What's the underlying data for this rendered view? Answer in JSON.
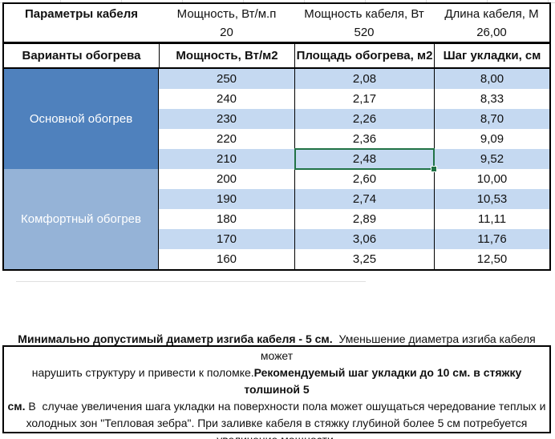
{
  "table": {
    "params_header": {
      "title": "Параметры кабеля",
      "power_per_m_label": "Мощность, Вт/м.п",
      "power_per_m_value": "20",
      "cable_power_label": "Мощность кабеля, Вт",
      "cable_power_value": "520",
      "cable_length_label": "Длина кабеля, М",
      "cable_length_value": "26,00"
    },
    "columns": [
      "Варианты обогрева",
      "Мощность, Вт/м2",
      "Площадь обогрева, м2",
      "Шаг укладки, см"
    ],
    "sections": [
      {
        "label": "Основной обогрев",
        "rows": [
          [
            "250",
            "2,08",
            "8,00"
          ],
          [
            "240",
            "2,17",
            "8,33"
          ],
          [
            "230",
            "2,26",
            "8,70"
          ],
          [
            "220",
            "2,36",
            "9,09"
          ],
          [
            "210",
            "2,48",
            "9,52"
          ]
        ]
      },
      {
        "label": "Комфортный обогрев",
        "rows": [
          [
            "200",
            "2,60",
            "10,00"
          ],
          [
            "190",
            "2,74",
            "10,53"
          ],
          [
            "180",
            "2,89",
            "11,11"
          ],
          [
            "170",
            "3,06",
            "11,76"
          ],
          [
            "160",
            "3,25",
            "12,50"
          ]
        ]
      }
    ],
    "selected_cell": {
      "section": 0,
      "row": 4,
      "col": 1,
      "value": "2,48"
    }
  },
  "note": {
    "lines": [
      [
        {
          "bold": true,
          "text": "Минимально допустимый диаметр изгиба кабеля - 5 см."
        },
        {
          "bold": false,
          "text": "  Уменьшение диаметра изгиба кабеля может"
        }
      ],
      [
        {
          "bold": false,
          "text": "нарушить структуру и привести к поломке."
        },
        {
          "bold": true,
          "text": "Рекомендуемый шаг укладки до 10 см. в стяжку толшиной 5"
        }
      ],
      [
        {
          "bold": true,
          "text": "см."
        },
        {
          "bold": false,
          "text": " В  случае увеличения шага укладки на поверхности пола может ошущаться чередование теплых и"
        }
      ],
      [
        {
          "bold": false,
          "text": "холодных зон \"Тепловая зебра\". При заливке кабеля в стяжку глубиной более 5 см потребуется"
        }
      ],
      [
        {
          "bold": false,
          "text": "увеличение мощности."
        }
      ]
    ]
  },
  "colors": {
    "section_main": "#4f81bd",
    "section_comfort": "#95b3d7",
    "stripe": "#c5d9f1",
    "stripe_alt": "#ffffff",
    "selection": "#217346",
    "border": "#000000",
    "gridline": "#d9d9d9"
  }
}
